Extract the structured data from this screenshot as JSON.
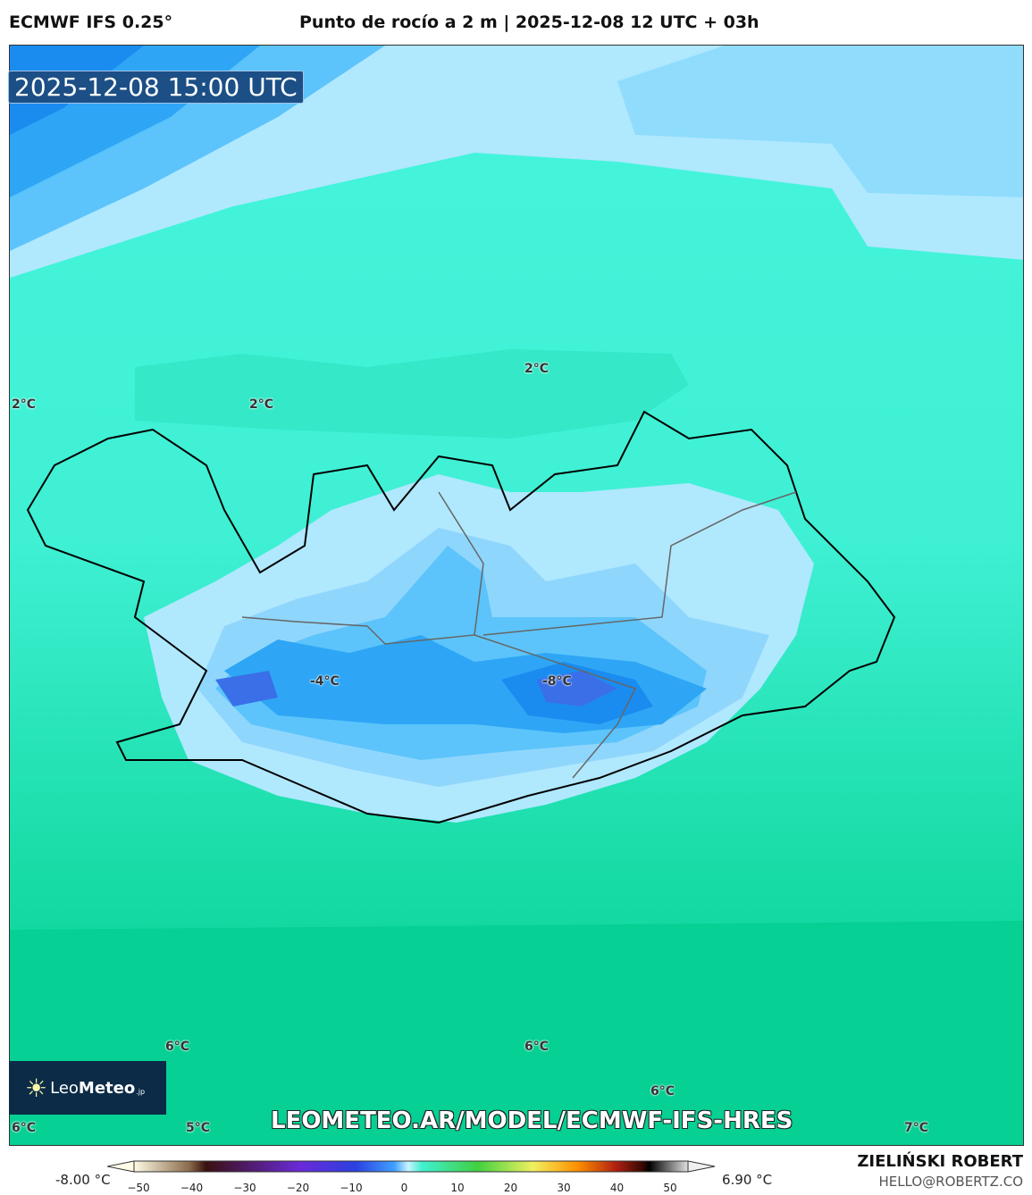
{
  "header": {
    "model": "ECMWF IFS 0.25°",
    "title": "Punto de rocío a 2 m | 2025-12-08 12 UTC + 03h"
  },
  "map": {
    "valid_time": "2025-12-08 15:00 UTC",
    "labels": [
      "2°C",
      "2°C",
      "2°C",
      "-4°C",
      "-8°C",
      "6°C",
      "6°C",
      "6°C",
      "5°C",
      "6°C",
      "7°C"
    ],
    "colors": {
      "deep_blue": "#1a8cf0",
      "mid_blue": "#5cc4fb",
      "light_blue": "#b0e8fe",
      "turquoise": "#45f5dc",
      "green": "#10d69e",
      "dark_green": "#00cc8c"
    }
  },
  "logo": {
    "text_light": "Leo",
    "text_bold": "Meteo",
    "suffix": ".jp"
  },
  "watermark_url": "LEOMETEO.AR/MODEL/ECMWF-IFS-HRES",
  "colorbar": {
    "min_label": "-8.00 °C",
    "max_label": "6.90 °C",
    "ticks": [
      "−50",
      "−40",
      "−30",
      "−20",
      "−10",
      "0",
      "10",
      "20",
      "30",
      "40",
      "50"
    ],
    "range": [
      -55,
      55
    ]
  },
  "credits": {
    "author": "ZIELIŃSKI ROBERT",
    "email": "HELLO@ROBERTZ.CO"
  }
}
